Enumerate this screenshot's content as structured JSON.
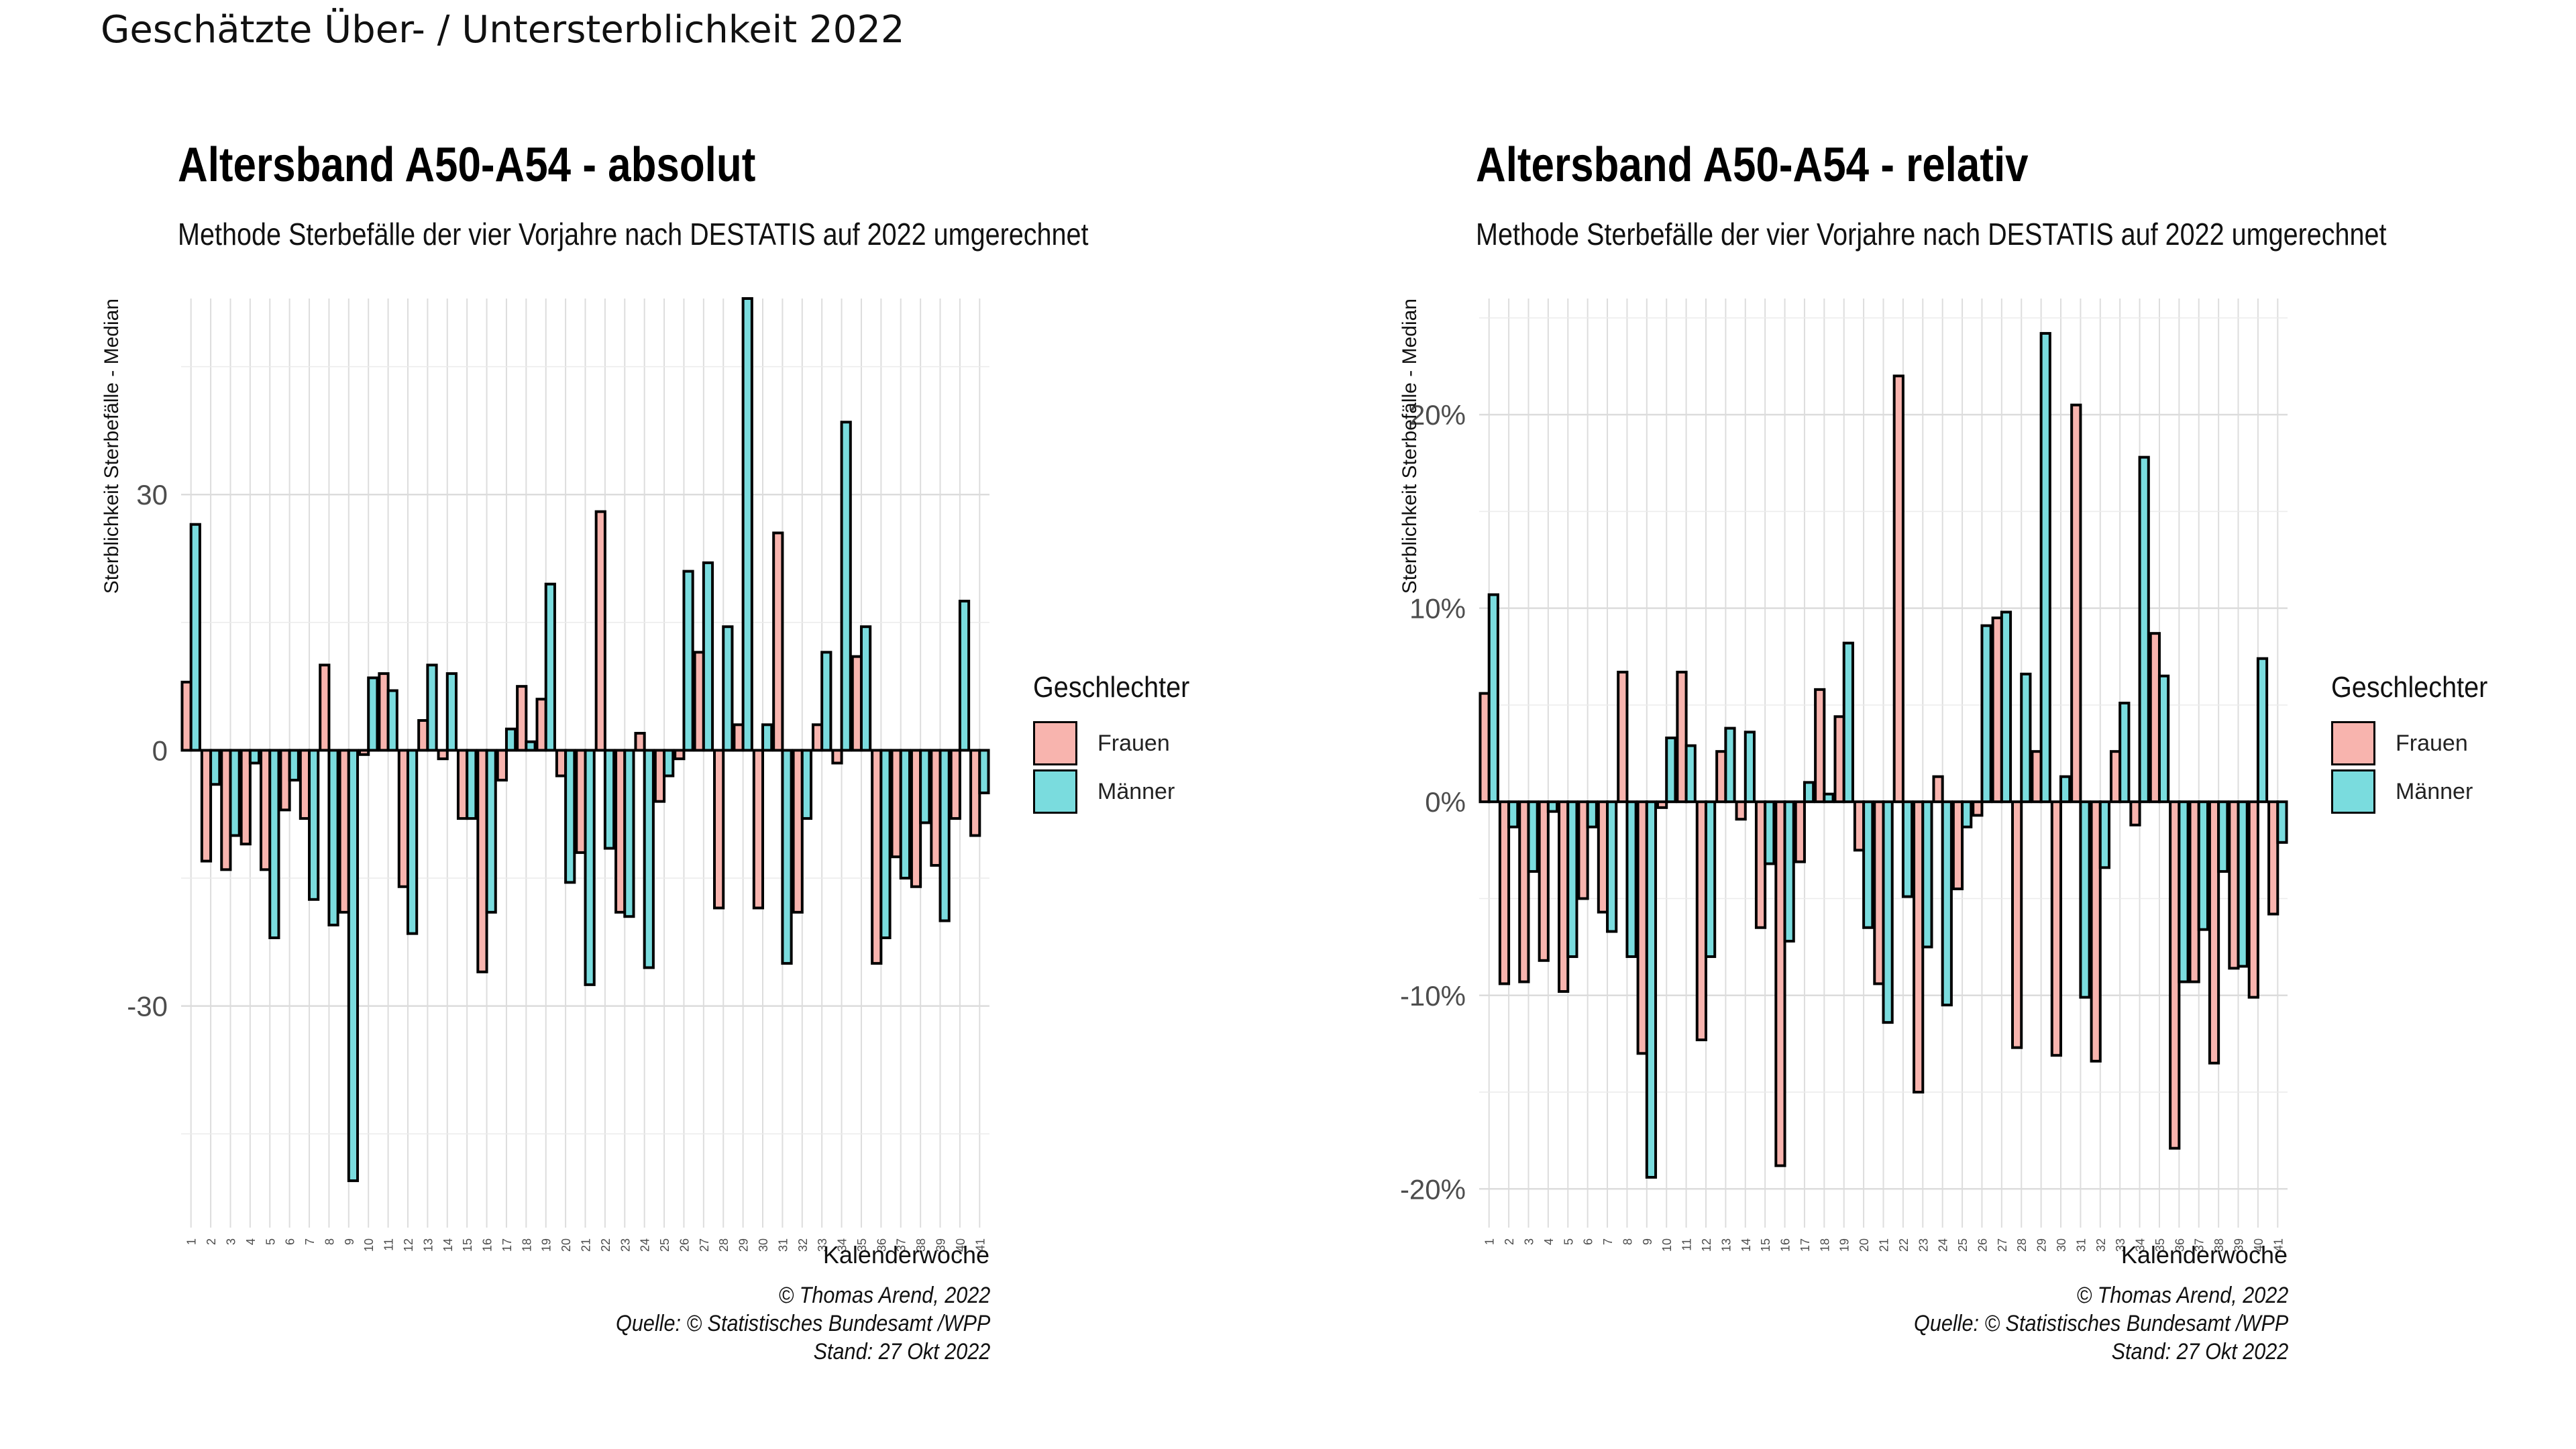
{
  "main_title": "Geschätzte Über- / Untersterblichkeit 2022",
  "colors": {
    "frauen": "#F8B4AE",
    "maenner": "#7ADCDE",
    "grid": "#DDDDDD",
    "outline": "#000000"
  },
  "panels": [
    {
      "title": "Altersband A50-A54 - absolut",
      "subtitle": "Methode Sterbefälle der vier Vorjahre nach DESTATIS auf 2022 umgerechnet",
      "legend": {
        "title": "Geschlechter",
        "items": [
          "Frauen",
          "Männer"
        ]
      },
      "caption": {
        "line1": "© Thomas Arend, 2022",
        "line2": "Quelle: © Statistisches Bundesamt /WPP",
        "line3": "Stand: 27 Okt 2022"
      }
    },
    {
      "title": "Altersband A50-A54 - relativ",
      "subtitle": "Methode Sterbefälle der vier Vorjahre nach DESTATIS auf 2022 umgerechnet",
      "legend": {
        "title": "Geschlechter",
        "items": [
          "Frauen",
          "Männer"
        ]
      },
      "caption": {
        "line1": "© Thomas Arend, 2022",
        "line2": "Quelle: © Statistisches Bundesamt /WPP",
        "line3": "Stand: 27 Okt 2022"
      }
    }
  ],
  "chart_data": [
    {
      "type": "bar",
      "title": "Altersband A50-A54 - absolut",
      "subtitle": "Methode Sterbefälle der vier Vorjahre nach DESTATIS auf 2022 umgerechnet",
      "xlabel": "Kalenderwoche",
      "ylabel": "Sterblichkeit Sterbefälle - Median",
      "ylim": [
        -56,
        53
      ],
      "yticks": [
        -30,
        0,
        30
      ],
      "ytick_labels": [
        "-30",
        "0",
        "30"
      ],
      "grid": true,
      "legend_position": "right",
      "categories": [
        "1",
        "2",
        "3",
        "4",
        "5",
        "6",
        "7",
        "8",
        "9",
        "10",
        "11",
        "12",
        "13",
        "14",
        "15",
        "16",
        "17",
        "18",
        "19",
        "20",
        "21",
        "22",
        "23",
        "24",
        "25",
        "26",
        "27",
        "28",
        "29",
        "30",
        "31",
        "32",
        "33",
        "34",
        "35",
        "36",
        "37",
        "38",
        "39",
        "40",
        "41"
      ],
      "series": [
        {
          "name": "Frauen",
          "color": "#F8B4AE",
          "values": [
            8,
            -13,
            -14,
            -11,
            -14,
            -7,
            -8,
            10,
            -19,
            -0.5,
            9,
            -16,
            3.5,
            -1,
            -8,
            -26,
            -3.5,
            7.5,
            6,
            -3,
            -12,
            28,
            -19,
            2,
            -6,
            -1,
            11.5,
            -18.5,
            3,
            -18.5,
            25.5,
            -19,
            3,
            -1.5,
            11,
            -25,
            -12.5,
            -16,
            -13.5,
            -8,
            -10
          ]
        },
        {
          "name": "Männer",
          "color": "#7ADCDE",
          "values": [
            26.5,
            -4,
            -10,
            -1.5,
            -22,
            -3.5,
            -17.5,
            -20.5,
            -50.5,
            8.5,
            7,
            -21.5,
            10,
            9,
            -8,
            -19,
            2.5,
            1,
            19.5,
            -15.5,
            -27.5,
            -11.5,
            -19.5,
            -25.5,
            -3,
            21,
            22,
            14.5,
            53,
            3,
            -25,
            -8,
            11.5,
            38.5,
            14.5,
            -22,
            -15,
            -8.5,
            -20,
            17.5,
            -5
          ]
        }
      ]
    },
    {
      "type": "bar",
      "title": "Altersband A50-A54 - relativ",
      "subtitle": "Methode Sterbefälle der vier Vorjahre nach DESTATIS auf 2022 umgerechnet",
      "xlabel": "Kalenderwoche",
      "ylabel": "Sterblichkeit Sterbefälle - Median",
      "ylim": [
        -0.22,
        0.26
      ],
      "yticks": [
        -0.2,
        -0.1,
        0,
        0.1,
        0.2
      ],
      "ytick_labels": [
        "-20%",
        "-10%",
        "0%",
        "10%",
        "20%"
      ],
      "grid": true,
      "legend_position": "right",
      "categories": [
        "1",
        "2",
        "3",
        "4",
        "5",
        "6",
        "7",
        "8",
        "9",
        "10",
        "11",
        "12",
        "13",
        "14",
        "15",
        "16",
        "17",
        "18",
        "19",
        "20",
        "21",
        "22",
        "23",
        "24",
        "25",
        "26",
        "27",
        "28",
        "29",
        "30",
        "31",
        "32",
        "33",
        "34",
        "35",
        "36",
        "37",
        "38",
        "39",
        "40",
        "41"
      ],
      "series": [
        {
          "name": "Frauen",
          "color": "#F8B4AE",
          "values": [
            0.056,
            -0.094,
            -0.093,
            -0.082,
            -0.098,
            -0.05,
            -0.057,
            0.067,
            -0.13,
            -0.003,
            0.067,
            -0.123,
            0.026,
            -0.009,
            -0.065,
            -0.188,
            -0.031,
            0.058,
            0.044,
            -0.025,
            -0.094,
            0.22,
            -0.15,
            0.013,
            -0.045,
            -0.007,
            0.095,
            -0.127,
            0.026,
            -0.131,
            0.205,
            -0.134,
            0.026,
            -0.012,
            0.087,
            -0.179,
            -0.093,
            -0.135,
            -0.086,
            -0.101,
            -0.058
          ]
        },
        {
          "name": "Männer",
          "color": "#7ADCDE",
          "values": [
            0.107,
            -0.013,
            -0.036,
            -0.005,
            -0.08,
            -0.013,
            -0.067,
            -0.08,
            -0.194,
            0.033,
            0.029,
            -0.08,
            0.038,
            0.036,
            -0.032,
            -0.072,
            0.01,
            0.004,
            0.082,
            -0.065,
            -0.114,
            -0.049,
            -0.075,
            -0.105,
            -0.013,
            0.091,
            0.098,
            0.066,
            0.242,
            0.013,
            -0.101,
            -0.034,
            0.051,
            0.178,
            0.065,
            -0.093,
            -0.066,
            -0.036,
            -0.085,
            0.074,
            -0.021
          ]
        }
      ]
    }
  ]
}
